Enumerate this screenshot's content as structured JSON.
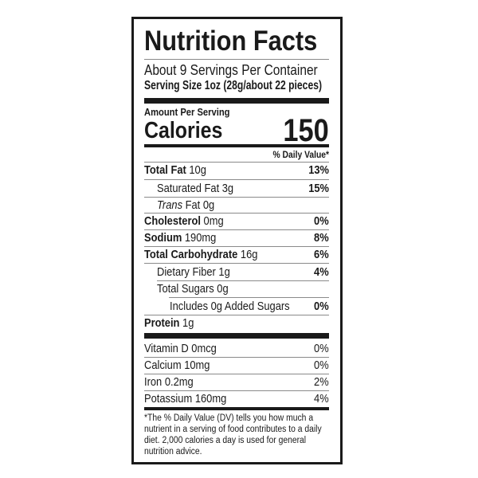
{
  "title": "Nutrition Facts",
  "servings_per_container": "About 9 Servings Per Container",
  "serving_size_label": "Serving Size",
  "serving_size_value": "1oz (28g/about 22 pieces)",
  "amount_per_serving": "Amount Per Serving",
  "calories_label": "Calories",
  "calories_value": "150",
  "daily_value_header": "% Daily Value*",
  "nutrients": [
    {
      "name": "Total Fat",
      "amount": "10g",
      "dv": "13%"
    },
    {
      "name": "Saturated Fat",
      "amount": "3g",
      "dv": "15%"
    },
    {
      "name": "Trans",
      "name_suffix": "Fat",
      "amount": "0g",
      "dv": ""
    },
    {
      "name": "Cholesterol",
      "amount": "0mg",
      "dv": "0%"
    },
    {
      "name": "Sodium",
      "amount": "190mg",
      "dv": "8%"
    },
    {
      "name": "Total Carbohydrate",
      "amount": "16g",
      "dv": "6%"
    },
    {
      "name": "Dietary Fiber",
      "amount": "1g",
      "dv": "4%"
    },
    {
      "name": "Total Sugars",
      "amount": "0g",
      "dv": ""
    },
    {
      "name": "Includes 0g Added Sugars",
      "amount": "",
      "dv": "0%"
    },
    {
      "name": "Protein",
      "amount": "1g",
      "dv": ""
    }
  ],
  "vitamins": [
    {
      "name": "Vitamin D",
      "amount": "0mcg",
      "dv": "0%"
    },
    {
      "name": "Calcium",
      "amount": "10mg",
      "dv": "0%"
    },
    {
      "name": "Iron",
      "amount": "0.2mg",
      "dv": "2%"
    },
    {
      "name": "Potassium",
      "amount": "160mg",
      "dv": "4%"
    }
  ],
  "footnote": "*The % Daily Value (DV) tells you how much a nutrient in a serving of food contributes to a daily diet. 2,000 calories a day is used for general nutrition advice."
}
